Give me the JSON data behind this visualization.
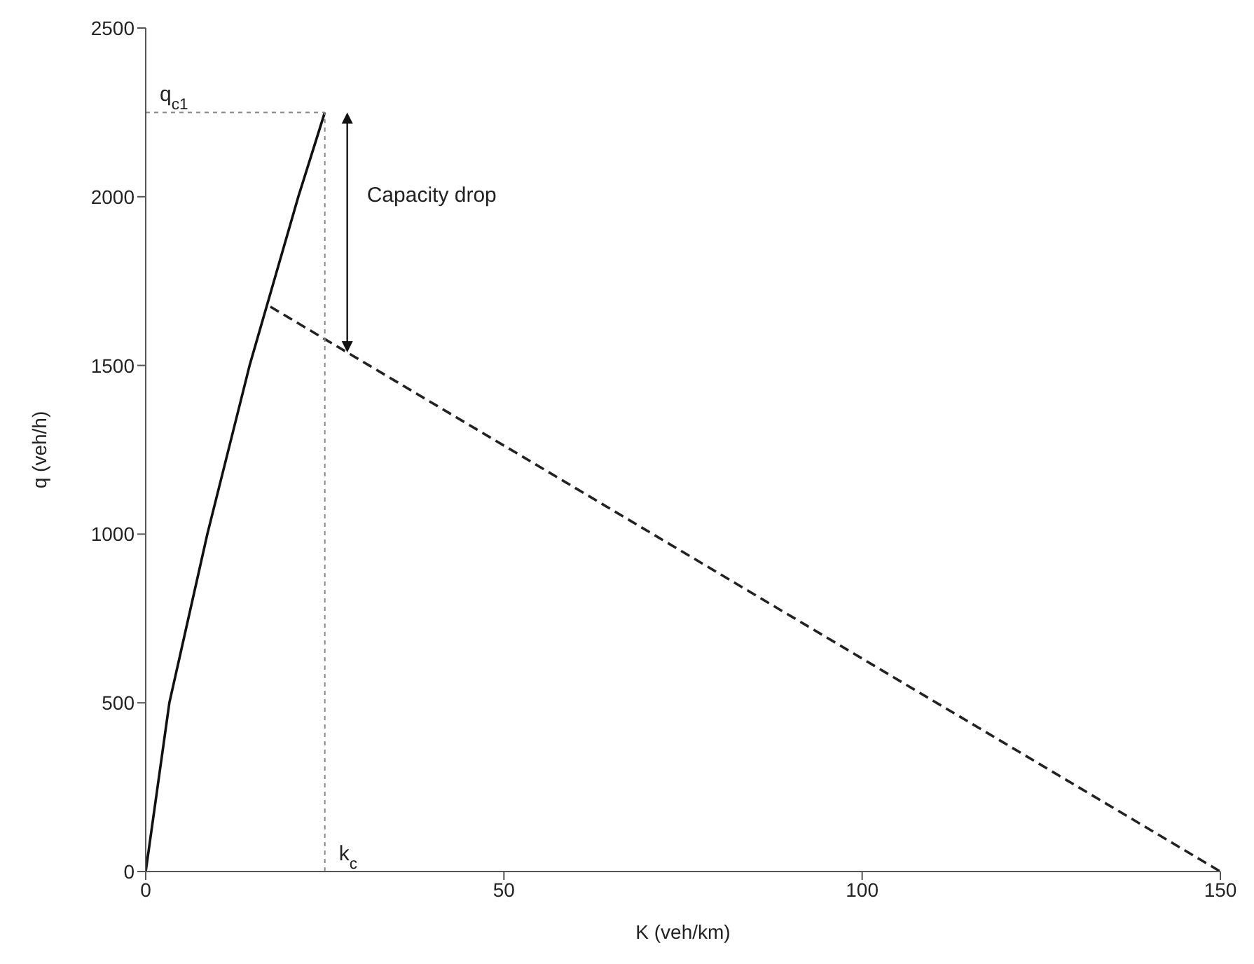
{
  "chart_data": {
    "type": "line",
    "xlabel": "K (veh/km)",
    "ylabel": "q (veh/h)",
    "xlim": [
      0,
      150
    ],
    "xticks": [
      0,
      50,
      100,
      150
    ],
    "ylim": [
      0,
      2500
    ],
    "yticks": [
      0,
      500,
      1000,
      1500,
      2000,
      2500
    ],
    "grid": false,
    "legend": false,
    "marker": "none",
    "series": [
      {
        "color": "#111111",
        "line_style": "solid",
        "x": [
          0,
          3.3,
          8.6,
          14.5,
          21.3,
          25
        ],
        "values": [
          0,
          500,
          1000,
          1500,
          2000,
          2250
        ]
      },
      {
        "color": "#222222",
        "line_style": "dashed",
        "x": [
          17.4,
          150
        ],
        "values": [
          1674,
          0
        ]
      },
      {
        "color": "#888888",
        "line_style": "dotted",
        "x": [
          0,
          25
        ],
        "values": [
          2250,
          2250
        ]
      },
      {
        "color": "#888888",
        "line_style": "dotted",
        "x": [
          25,
          25
        ],
        "values": [
          0,
          2250
        ]
      }
    ],
    "annotations": [
      "Capacity drop",
      {
        "text": "q$_{c1}$",
        "x": 0,
        "y": 2250
      },
      {
        "text": "k$_{c}$",
        "x": 25,
        "y": 0
      }
    ]
  }
}
